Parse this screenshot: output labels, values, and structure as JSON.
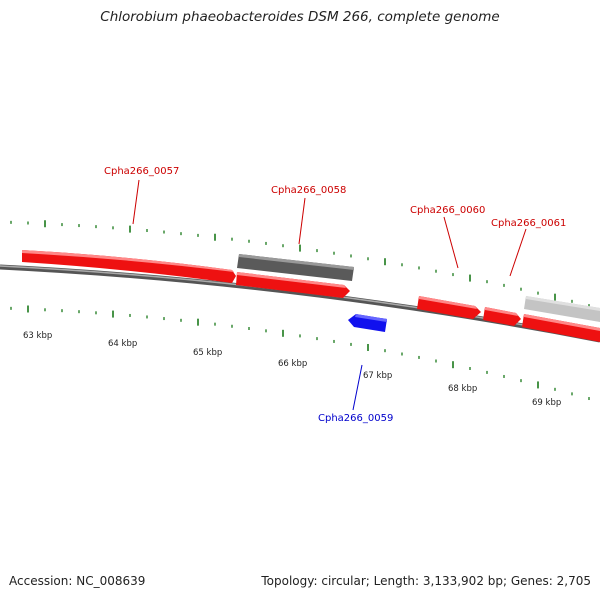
{
  "title": "Chlorobium phaeobacteroides DSM 266, complete genome",
  "footer": {
    "accession": "Accession: NC_008639",
    "summary": "Topology: circular; Length: 3,133,902 bp; Genes: 2,705"
  },
  "colors": {
    "forward_gene": "#ee1111",
    "reverse_gene": "#1111ee",
    "other_gene_dark": "#666666",
    "other_gene_light": "#bbbbbb",
    "backbone": "#7a7a7a",
    "ticks": "#1a7a1a",
    "label_forward": "#cc0000",
    "label_reverse": "#0000cc"
  },
  "axis_ticks": [
    {
      "label": "63 kbp"
    },
    {
      "label": "64 kbp"
    },
    {
      "label": "65 kbp"
    },
    {
      "label": "66 kbp"
    },
    {
      "label": "67 kbp"
    },
    {
      "label": "68 kbp"
    },
    {
      "label": "69 kbp"
    }
  ],
  "gene_labels": [
    {
      "name": "Cpha266_0057",
      "strand": "forward"
    },
    {
      "name": "Cpha266_0058",
      "strand": "forward"
    },
    {
      "name": "Cpha266_0059",
      "strand": "reverse"
    },
    {
      "name": "Cpha266_0060",
      "strand": "forward"
    },
    {
      "name": "Cpha266_0061",
      "strand": "forward"
    }
  ]
}
